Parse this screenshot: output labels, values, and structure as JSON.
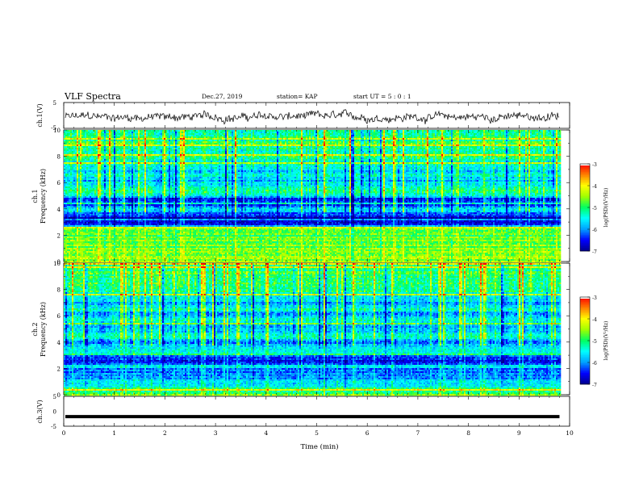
{
  "header": {
    "title": "VLF Spectra",
    "date": "Dec.27, 2019",
    "station": "station= KAP",
    "start": "start  UT  =  5 : 0  : 1"
  },
  "colors": {
    "line": "#000000",
    "colormap": [
      "#00008c",
      "#0000ff",
      "#00a0ff",
      "#00ffff",
      "#00ff60",
      "#a0ff00",
      "#ffff00",
      "#ff8000",
      "#ff0000",
      "#ffffff"
    ]
  },
  "chart_data": [
    {
      "type": "line",
      "panel": "ch1",
      "ylabel": "ch.1(V)",
      "ylim": [
        -5,
        5
      ],
      "yticks": [
        "5",
        "-5"
      ],
      "xlim": [
        0,
        10
      ],
      "baseline_v": -0.6,
      "amplitude_v": 1.3
    },
    {
      "type": "heatmap",
      "panel": "ch1-spectrogram",
      "ylabel_top": "ch.1",
      "ylabel": "Frequency (kHz)",
      "ylim": [
        0,
        10
      ],
      "yticks": [
        "0",
        "2",
        "4",
        "6",
        "8",
        "10"
      ],
      "xlim": [
        0,
        9.8
      ],
      "colorbar": {
        "label": "log(PSD)(V²/Hz)",
        "range": [
          -7,
          -3
        ],
        "ticks": [
          "-3",
          "-4",
          "-5",
          "-6",
          "-7"
        ]
      },
      "freq_profile_khz": [
        [
          0.0,
          -4.6
        ],
        [
          0.5,
          -4.5
        ],
        [
          1.0,
          -4.7
        ],
        [
          1.5,
          -4.6
        ],
        [
          2.0,
          -4.8
        ],
        [
          2.5,
          -4.7
        ],
        [
          2.8,
          -6.4
        ],
        [
          3.1,
          -6.9
        ],
        [
          3.4,
          -6.8
        ],
        [
          3.6,
          -6.2
        ],
        [
          3.9,
          -5.6
        ],
        [
          4.3,
          -6.3
        ],
        [
          4.8,
          -6.2
        ],
        [
          5.0,
          -5.3
        ],
        [
          5.4,
          -5.0
        ],
        [
          5.8,
          -5.6
        ],
        [
          6.2,
          -5.8
        ],
        [
          6.6,
          -5.3
        ],
        [
          7.0,
          -5.7
        ],
        [
          7.5,
          -5.3
        ],
        [
          8.0,
          -5.1
        ],
        [
          9.0,
          -5.0
        ],
        [
          10.0,
          -5.1
        ]
      ]
    },
    {
      "type": "heatmap",
      "panel": "ch2-spectrogram",
      "ylabel_top": "ch.2",
      "ylabel": "Frequency (kHz)",
      "ylim": [
        0,
        10
      ],
      "yticks": [
        "0",
        "2",
        "4",
        "6",
        "8",
        "10"
      ],
      "xlim": [
        0,
        9.8
      ],
      "colorbar": {
        "label": "log(PSD)(V²/Hz)",
        "range": [
          -7,
          -3
        ],
        "ticks": [
          "-3",
          "-4",
          "-5",
          "-6",
          "-7"
        ]
      },
      "freq_profile_khz": [
        [
          0.0,
          -4.8
        ],
        [
          0.5,
          -5.2
        ],
        [
          1.0,
          -5.6
        ],
        [
          1.5,
          -6.1
        ],
        [
          1.9,
          -6.2
        ],
        [
          2.1,
          -5.4
        ],
        [
          2.5,
          -6.6
        ],
        [
          2.9,
          -6.5
        ],
        [
          3.2,
          -5.2
        ],
        [
          3.6,
          -5.6
        ],
        [
          4.0,
          -6.0
        ],
        [
          4.4,
          -5.5
        ],
        [
          5.0,
          -5.9
        ],
        [
          5.5,
          -5.4
        ],
        [
          6.0,
          -5.9
        ],
        [
          6.5,
          -5.5
        ],
        [
          7.0,
          -5.8
        ],
        [
          7.5,
          -5.3
        ],
        [
          8.0,
          -5.2
        ],
        [
          9.0,
          -5.0
        ],
        [
          10.0,
          -5.1
        ]
      ]
    },
    {
      "type": "line",
      "panel": "ch3",
      "ylabel": "ch.3(V)",
      "ylim": [
        -5,
        5
      ],
      "yticks": [
        "5",
        "0",
        "-5"
      ],
      "xlim": [
        0,
        9.8
      ],
      "constant_v": -1.8
    }
  ],
  "xaxis": {
    "label": "Time (min)",
    "range": [
      0,
      10
    ],
    "ticks": [
      "0",
      "1",
      "2",
      "3",
      "4",
      "5",
      "6",
      "7",
      "8",
      "9",
      "10"
    ]
  }
}
